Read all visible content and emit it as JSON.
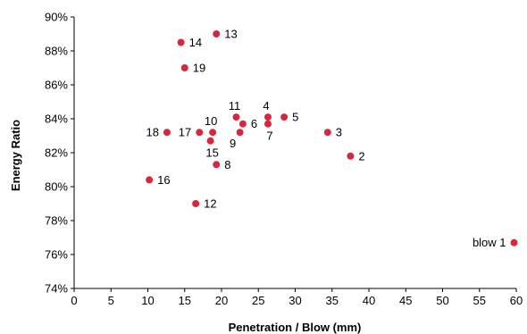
{
  "chart_data": {
    "type": "scatter",
    "title": "",
    "xlabel": "Penetration / Blow (mm)",
    "ylabel": "Energy Ratio",
    "xlim": [
      0,
      60
    ],
    "ylim": [
      74,
      90
    ],
    "x_ticks": [
      "0",
      "5",
      "10",
      "15",
      "20",
      "25",
      "30",
      "35",
      "40",
      "45",
      "50",
      "55",
      "60"
    ],
    "y_ticks": [
      "74%",
      "76%",
      "78%",
      "80%",
      "82%",
      "84%",
      "86%",
      "88%",
      "90%"
    ],
    "grid": false,
    "legend": "none",
    "marker_color": "#d9263f",
    "series": [
      {
        "points": [
          {
            "label": "blow 1",
            "x": 59.7,
            "y": 76.7,
            "label_pos": "left"
          },
          {
            "label": "2",
            "x": 37.5,
            "y": 81.8,
            "label_pos": "right"
          },
          {
            "label": "3",
            "x": 34.4,
            "y": 83.2,
            "label_pos": "right"
          },
          {
            "label": "4",
            "x": 26.3,
            "y": 84.1,
            "label_pos": "above"
          },
          {
            "label": "5",
            "x": 28.5,
            "y": 84.1,
            "label_pos": "right"
          },
          {
            "label": "6",
            "x": 22.9,
            "y": 83.7,
            "label_pos": "right"
          },
          {
            "label": "7",
            "x": 26.3,
            "y": 83.7,
            "label_pos": "below"
          },
          {
            "label": "8",
            "x": 19.3,
            "y": 81.3,
            "label_pos": "right"
          },
          {
            "label": "9",
            "x": 22.5,
            "y": 83.2,
            "label_pos": "below-left"
          },
          {
            "label": "10",
            "x": 18.8,
            "y": 83.2,
            "label_pos": "above"
          },
          {
            "label": "11",
            "x": 22.0,
            "y": 84.1,
            "label_pos": "above"
          },
          {
            "label": "12",
            "x": 16.5,
            "y": 79.0,
            "label_pos": "right"
          },
          {
            "label": "13",
            "x": 19.3,
            "y": 89.0,
            "label_pos": "right"
          },
          {
            "label": "14",
            "x": 14.5,
            "y": 88.5,
            "label_pos": "right"
          },
          {
            "label": "15",
            "x": 18.5,
            "y": 82.7,
            "label_pos": "below"
          },
          {
            "label": "16",
            "x": 10.2,
            "y": 80.4,
            "label_pos": "right"
          },
          {
            "label": "17",
            "x": 17.0,
            "y": 83.2,
            "label_pos": "left"
          },
          {
            "label": "18",
            "x": 12.6,
            "y": 83.2,
            "label_pos": "left"
          },
          {
            "label": "19",
            "x": 15.0,
            "y": 87.0,
            "label_pos": "right"
          }
        ]
      }
    ]
  }
}
